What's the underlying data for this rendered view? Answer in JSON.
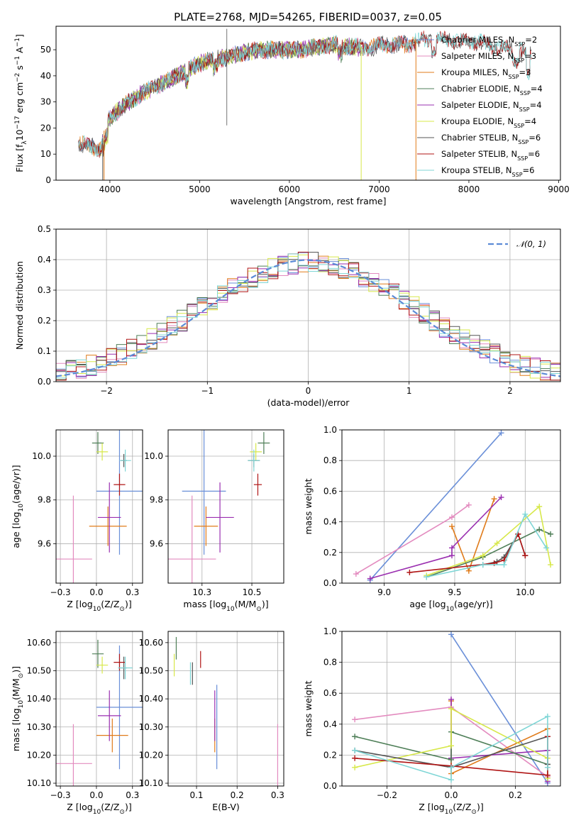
{
  "figure": {
    "title": "PLATE=2768, MJD=54265, FIBERID=0037, z=0.05"
  },
  "colors": {
    "Chabrier MILES": "#6a8fd8",
    "Salpeter MILES": "#e38bbf",
    "Kroupa MILES": "#e07b1a",
    "Chabrier ELODIE": "#4f7f58",
    "Salpeter ELODIE": "#9a2fb0",
    "Kroupa ELODIE": "#d7e84a",
    "Chabrier STELIB": "#555555",
    "Salpeter STELIB": "#b01515",
    "Kroupa STELIB": "#7fd6d6"
  },
  "legend": {
    "spectrum": [
      {
        "name": "Chabrier MILES",
        "pre": "Chabrier MILES, N",
        "sub": "SSP",
        "post": "=2"
      },
      {
        "name": "Salpeter MILES",
        "pre": "Salpeter MILES, N",
        "sub": "SSP",
        "post": "=3"
      },
      {
        "name": "Kroupa MILES",
        "pre": "Kroupa MILES, N",
        "sub": "SSP",
        "post": "=3"
      },
      {
        "name": "Chabrier ELODIE",
        "pre": "Chabrier ELODIE, N",
        "sub": "SSP",
        "post": "=4"
      },
      {
        "name": "Salpeter ELODIE",
        "pre": "Salpeter ELODIE, N",
        "sub": "SSP",
        "post": "=4"
      },
      {
        "name": "Kroupa ELODIE",
        "pre": "Kroupa ELODIE, N",
        "sub": "SSP",
        "post": "=4"
      },
      {
        "name": "Chabrier STELIB",
        "pre": "Chabrier STELIB, N",
        "sub": "SSP",
        "post": "=6"
      },
      {
        "name": "Salpeter STELIB",
        "pre": "Salpeter STELIB, N",
        "sub": "SSP",
        "post": "=6"
      },
      {
        "name": "Kroupa STELIB",
        "pre": "Kroupa STELIB, N",
        "sub": "SSP",
        "post": "=6"
      }
    ],
    "hist": "𝒩(0, 1)"
  },
  "chart_data": [
    {
      "id": "spectrum",
      "type": "line",
      "xlabel": "wavelength [Angstrom, rest frame]",
      "ylabel_parts": [
        "Flux [f",
        "λ",
        "10",
        "−17",
        " erg cm",
        "−2",
        " s",
        "−1",
        " A",
        "−1",
        "]"
      ],
      "xlim": [
        3400,
        9020
      ],
      "ylim": [
        0,
        59
      ],
      "xticks": [
        4000,
        5000,
        6000,
        7000,
        8000,
        9000
      ],
      "yticks": [
        0,
        10,
        20,
        30,
        40,
        50
      ],
      "grid": false,
      "continuum": {
        "x": [
          3650,
          3900,
          3950,
          4100,
          4300,
          4500,
          4700,
          4900,
          5100,
          5300,
          5500,
          5700,
          5900,
          6100,
          6300,
          6500,
          6700,
          6900,
          7100,
          7300,
          7500,
          7700,
          7900,
          8100,
          8300,
          8500,
          8700
        ],
        "y": [
          14,
          12,
          22,
          27,
          32,
          36,
          39,
          43,
          46,
          47,
          49,
          50,
          50,
          50,
          51,
          52,
          51,
          51,
          52,
          52,
          54,
          54,
          53,
          53,
          51,
          50,
          48
        ]
      },
      "series_extent": {
        "Chabrier MILES": [
          3650,
          7410
        ],
        "Salpeter MILES": [
          3650,
          7410
        ],
        "Kroupa MILES": [
          3650,
          7410
        ],
        "Chabrier ELODIE": [
          3900,
          6800
        ],
        "Salpeter ELODIE": [
          3900,
          6800
        ],
        "Kroupa ELODIE": [
          3900,
          6800
        ],
        "Chabrier STELIB": [
          3650,
          8700
        ],
        "Salpeter STELIB": [
          3650,
          8700
        ],
        "Kroupa STELIB": [
          3650,
          8700
        ]
      }
    },
    {
      "id": "residuals",
      "type": "step-histogram",
      "xlabel": "(data-model)/error",
      "ylabel": "Normed distribution",
      "xlim": [
        -2.5,
        2.5
      ],
      "ylim": [
        0,
        0.5
      ],
      "xticks": [
        -2,
        -1,
        0,
        1,
        2
      ],
      "yticks": [
        0.0,
        0.1,
        0.2,
        0.3,
        0.4,
        0.5
      ],
      "grid": true,
      "bin_width": 0.1,
      "series": "all nine",
      "reference": {
        "name": "𝒩(0, 1)",
        "mean": 0,
        "sigma": 1
      }
    },
    {
      "id": "Z-age",
      "type": "errorbar",
      "xlabel_parts": [
        "Z [log",
        "10",
        "(Z/Z",
        "⊙",
        ")]"
      ],
      "ylabel_parts": [
        "age  [log",
        "10",
        "(age/yr)]"
      ],
      "xlim": [
        -0.28,
        0.32
      ],
      "ylim": [
        9.42,
        10.12
      ],
      "xticks": [
        -0.25,
        0.0,
        0.25
      ],
      "yticks": [
        9.6,
        9.8,
        10.0
      ],
      "grid": true,
      "points": [
        {
          "s": "Salpeter MILES",
          "x": -0.16,
          "xe": 0.13,
          "y": 9.53,
          "ye": 0.29
        },
        {
          "s": "Chabrier MILES",
          "x": 0.16,
          "xe": 0.16,
          "y": 9.84,
          "ye": 0.29
        },
        {
          "s": "Kroupa MILES",
          "x": 0.08,
          "xe": 0.13,
          "y": 9.68,
          "ye": 0.09
        },
        {
          "s": "Salpeter ELODIE",
          "x": 0.09,
          "xe": 0.08,
          "y": 9.72,
          "ye": 0.16
        },
        {
          "s": "Chabrier ELODIE",
          "x": 0.01,
          "xe": 0.04,
          "y": 10.06,
          "ye": 0.05
        },
        {
          "s": "Kroupa ELODIE",
          "x": 0.04,
          "xe": 0.04,
          "y": 10.02,
          "ye": 0.04
        },
        {
          "s": "Chabrier STELIB",
          "x": 0.19,
          "xe": 0.02,
          "y": 9.98,
          "ye": 0.03
        },
        {
          "s": "Salpeter STELIB",
          "x": 0.16,
          "xe": 0.04,
          "y": 9.87,
          "ye": 0.05
        },
        {
          "s": "Kroupa STELIB",
          "x": 0.2,
          "xe": 0.04,
          "y": 9.98,
          "ye": 0.05
        }
      ]
    },
    {
      "id": "mass-age",
      "type": "errorbar",
      "xlabel_parts": [
        "mass [log",
        "10",
        "(M/M",
        "⊙",
        ")]"
      ],
      "ylabel_parts": [],
      "xlim": [
        10.08,
        10.66
      ],
      "ylim": [
        9.42,
        10.12
      ],
      "xticks": [
        10.25,
        10.5
      ],
      "yticks": [
        9.6,
        9.8,
        10.0
      ],
      "grid": true,
      "points": [
        {
          "s": "Salpeter MILES",
          "x": 10.2,
          "xe": 0.12,
          "y": 9.53,
          "ye": 0.29
        },
        {
          "s": "Chabrier MILES",
          "x": 10.26,
          "xe": 0.11,
          "y": 9.84,
          "ye": 0.29
        },
        {
          "s": "Kroupa MILES",
          "x": 10.27,
          "xe": 0.06,
          "y": 9.68,
          "ye": 0.09
        },
        {
          "s": "Salpeter ELODIE",
          "x": 10.34,
          "xe": 0.07,
          "y": 9.72,
          "ye": 0.16
        },
        {
          "s": "Chabrier ELODIE",
          "x": 10.56,
          "xe": 0.03,
          "y": 10.06,
          "ye": 0.05
        },
        {
          "s": "Kroupa ELODIE",
          "x": 10.52,
          "xe": 0.03,
          "y": 10.02,
          "ye": 0.04
        },
        {
          "s": "Chabrier STELIB",
          "x": 10.51,
          "xe": 0.03,
          "y": 9.98,
          "ye": 0.03
        },
        {
          "s": "Salpeter STELIB",
          "x": 10.53,
          "xe": 0.02,
          "y": 9.87,
          "ye": 0.05
        },
        {
          "s": "Kroupa STELIB",
          "x": 10.51,
          "xe": 0.03,
          "y": 9.98,
          "ye": 0.05
        }
      ]
    },
    {
      "id": "age-weight",
      "type": "line",
      "xlabel_parts": [
        "age  [log",
        "10",
        "(age/yr)]"
      ],
      "ylabel": "mass weight",
      "xlim": [
        8.7,
        10.25
      ],
      "ylim": [
        0,
        1
      ],
      "xticks": [
        9.0,
        9.5,
        10.0
      ],
      "yticks": [
        0.0,
        0.2,
        0.4,
        0.6,
        0.8,
        1.0
      ],
      "grid": true,
      "series": [
        {
          "s": "Chabrier MILES",
          "x": [
            8.9,
            9.83
          ],
          "y": [
            0.02,
            0.98
          ]
        },
        {
          "s": "Salpeter MILES",
          "x": [
            8.8,
            9.48,
            9.6
          ],
          "y": [
            0.06,
            0.43,
            0.51
          ]
        },
        {
          "s": "Kroupa MILES",
          "x": [
            9.48,
            9.6,
            9.78
          ],
          "y": [
            0.37,
            0.08,
            0.55
          ]
        },
        {
          "s": "Salpeter ELODIE",
          "x": [
            8.9,
            9.48,
            9.48,
            9.83
          ],
          "y": [
            0.03,
            0.18,
            0.23,
            0.56
          ]
        },
        {
          "s": "Chabrier ELODIE",
          "x": [
            9.3,
            9.7,
            10.1,
            10.18
          ],
          "y": [
            0.04,
            0.17,
            0.35,
            0.32
          ]
        },
        {
          "s": "Kroupa ELODIE",
          "x": [
            9.3,
            9.7,
            9.8,
            10.1,
            10.18
          ],
          "y": [
            0.05,
            0.18,
            0.26,
            0.5,
            0.12
          ]
        },
        {
          "s": "Chabrier STELIB",
          "x": [
            9.7,
            9.8,
            9.85,
            9.95,
            10.0
          ],
          "y": [
            0.12,
            0.14,
            0.17,
            0.32,
            0.18
          ]
        },
        {
          "s": "Salpeter STELIB",
          "x": [
            9.18,
            9.78,
            9.85,
            9.95,
            10.0
          ],
          "y": [
            0.07,
            0.13,
            0.15,
            0.32,
            0.18
          ]
        },
        {
          "s": "Kroupa STELIB",
          "x": [
            9.3,
            9.7,
            9.85,
            10.0,
            10.15
          ],
          "y": [
            0.04,
            0.12,
            0.12,
            0.45,
            0.23
          ]
        }
      ]
    },
    {
      "id": "Z-mass",
      "type": "errorbar",
      "xlabel_parts": [
        "Z [log",
        "10",
        "(Z/Z",
        "⊙",
        ")]"
      ],
      "ylabel_parts": [
        "mass [log",
        "10",
        "(M/M",
        "⊙",
        ")]"
      ],
      "xlim": [
        -0.28,
        0.32
      ],
      "ylim": [
        10.09,
        10.64
      ],
      "xticks": [
        -0.25,
        0.0,
        0.25
      ],
      "yticks": [
        10.1,
        10.2,
        10.3,
        10.4,
        10.5,
        10.6
      ],
      "grid": true,
      "points": [
        {
          "s": "Salpeter MILES",
          "x": -0.16,
          "xe": 0.13,
          "y": 10.17,
          "ye": 0.14
        },
        {
          "s": "Chabrier MILES",
          "x": 0.16,
          "xe": 0.16,
          "y": 10.37,
          "ye": 0.22
        },
        {
          "s": "Kroupa MILES",
          "x": 0.11,
          "xe": 0.11,
          "y": 10.27,
          "ye": 0.06
        },
        {
          "s": "Salpeter ELODIE",
          "x": 0.09,
          "xe": 0.08,
          "y": 10.34,
          "ye": 0.09
        },
        {
          "s": "Chabrier ELODIE",
          "x": 0.01,
          "xe": 0.04,
          "y": 10.56,
          "ye": 0.05
        },
        {
          "s": "Kroupa ELODIE",
          "x": 0.04,
          "xe": 0.04,
          "y": 10.52,
          "ye": 0.03
        },
        {
          "s": "Chabrier STELIB",
          "x": 0.19,
          "xe": 0.02,
          "y": 10.51,
          "ye": 0.04
        },
        {
          "s": "Salpeter STELIB",
          "x": 0.16,
          "xe": 0.04,
          "y": 10.53,
          "ye": 0.03
        },
        {
          "s": "Kroupa STELIB",
          "x": 0.2,
          "xe": 0.05,
          "y": 10.51,
          "ye": 0.04
        }
      ]
    },
    {
      "id": "EBV-mass",
      "type": "errorbar",
      "xlabel": "E(B-V)",
      "ylabel_parts": [],
      "xlim": [
        0.03,
        0.315
      ],
      "ylim": [
        10.09,
        10.64
      ],
      "xticks": [
        0.1,
        0.2,
        0.3
      ],
      "yticks": [
        10.1,
        10.2,
        10.3,
        10.4,
        10.5,
        10.6
      ],
      "grid": true,
      "points": [
        {
          "s": "Salpeter MILES",
          "x": 0.3,
          "xe": 0,
          "y": 10.17,
          "ye": 0.14
        },
        {
          "s": "Chabrier MILES",
          "x": 0.15,
          "xe": 0,
          "y": 10.3,
          "ye": 0.15
        },
        {
          "s": "Kroupa MILES",
          "x": 0.145,
          "xe": 0,
          "y": 10.27,
          "ye": 0.06
        },
        {
          "s": "Salpeter ELODIE",
          "x": 0.145,
          "xe": 0,
          "y": 10.34,
          "ye": 0.09
        },
        {
          "s": "Chabrier ELODIE",
          "x": 0.05,
          "xe": 0,
          "y": 10.58,
          "ye": 0.04
        },
        {
          "s": "Kroupa ELODIE",
          "x": 0.045,
          "xe": 0,
          "y": 10.52,
          "ye": 0.04
        },
        {
          "s": "Chabrier STELIB",
          "x": 0.09,
          "xe": 0,
          "y": 10.49,
          "ye": 0.04
        },
        {
          "s": "Salpeter STELIB",
          "x": 0.11,
          "xe": 0,
          "y": 10.54,
          "ye": 0.03
        },
        {
          "s": "Kroupa STELIB",
          "x": 0.085,
          "xe": 0,
          "y": 10.49,
          "ye": 0.04
        }
      ]
    },
    {
      "id": "Z-weight",
      "type": "line",
      "xlabel_parts": [
        "Z [log",
        "10",
        "(Z/Z",
        "⊙",
        ")]"
      ],
      "ylabel": "mass weight",
      "xlim": [
        -0.34,
        0.34
      ],
      "ylim": [
        0,
        1
      ],
      "xticks": [
        -0.2,
        0.0,
        0.2
      ],
      "yticks": [
        0.0,
        0.2,
        0.4,
        0.6,
        0.8,
        1.0
      ],
      "grid": true,
      "series": [
        {
          "s": "Chabrier MILES",
          "x": [
            0.0,
            0.3
          ],
          "y": [
            0.98,
            0.02
          ]
        },
        {
          "s": "Salpeter MILES",
          "x": [
            -0.3,
            0.0,
            0.3
          ],
          "y": [
            0.43,
            0.51,
            0.06
          ]
        },
        {
          "s": "Kroupa MILES",
          "x": [
            0.0,
            0.0,
            0.3
          ],
          "y": [
            0.55,
            0.08,
            0.37
          ]
        },
        {
          "s": "Salpeter ELODIE",
          "x": [
            0.0,
            0.0,
            0.3,
            0.3
          ],
          "y": [
            0.56,
            0.18,
            0.23,
            0.03
          ]
        },
        {
          "s": "Chabrier ELODIE",
          "x": [
            -0.3,
            0.0,
            0.0,
            0.3
          ],
          "y": [
            0.32,
            0.17,
            0.35,
            0.14
          ]
        },
        {
          "s": "Kroupa ELODIE",
          "x": [
            -0.3,
            0.0,
            0.0,
            0.3,
            0.3
          ],
          "y": [
            0.12,
            0.26,
            0.5,
            0.18,
            0.05
          ]
        },
        {
          "s": "Chabrier STELIB",
          "x": [
            -0.3,
            0.0,
            0.3,
            0.3
          ],
          "y": [
            0.23,
            0.12,
            0.32,
            0.14
          ]
        },
        {
          "s": "Salpeter STELIB",
          "x": [
            -0.3,
            0.0,
            0.3,
            0.3
          ],
          "y": [
            0.18,
            0.13,
            0.07,
            0.32
          ]
        },
        {
          "s": "Kroupa STELIB",
          "x": [
            -0.3,
            0.0,
            0.0,
            0.3,
            0.3
          ],
          "y": [
            0.23,
            0.04,
            0.12,
            0.45,
            0.12
          ]
        }
      ]
    }
  ]
}
